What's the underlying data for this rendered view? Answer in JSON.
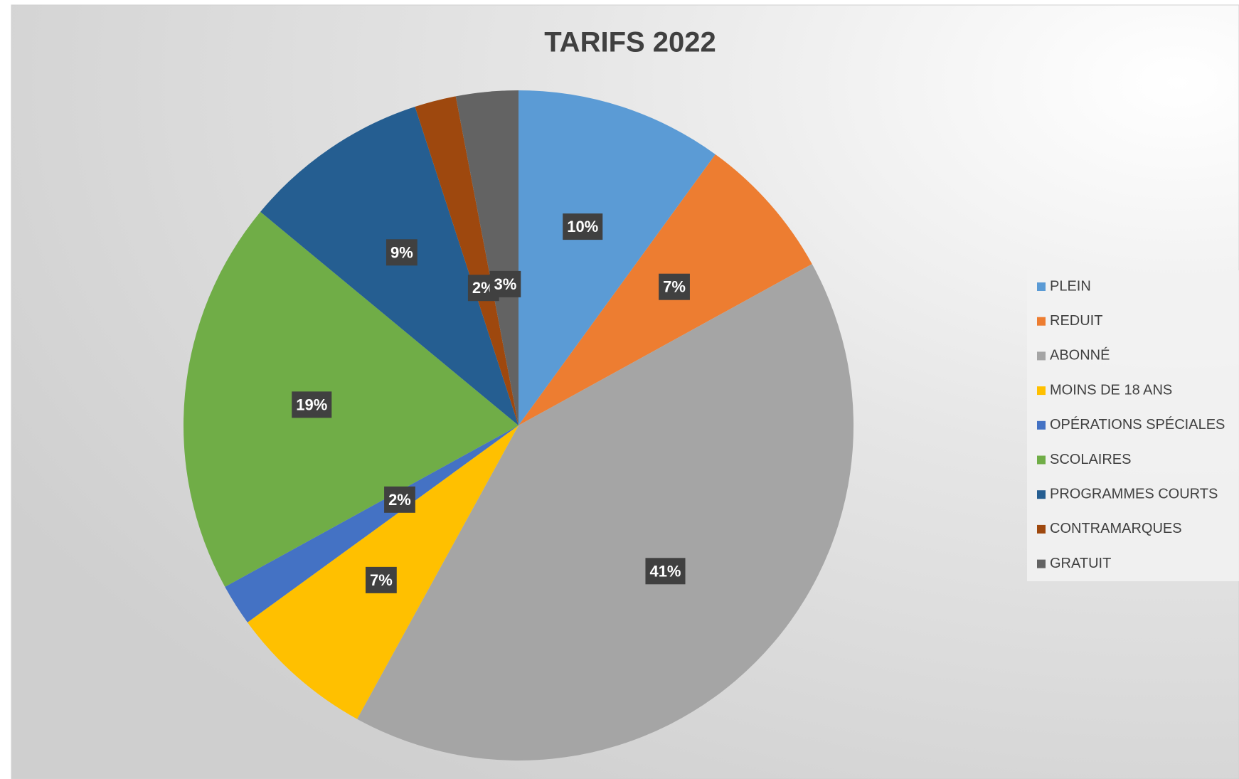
{
  "chart_data": {
    "type": "pie",
    "title": "TARIFS 2022",
    "categories": [
      "PLEIN",
      "REDUIT",
      "ABONNÉ",
      "MOINS DE 18 ANS",
      "OPÉRATIONS SPÉCIALES",
      "SCOLAIRES",
      "PROGRAMMES COURTS",
      "CONTRAMARQUES",
      "GRATUIT"
    ],
    "values": [
      10,
      7,
      41,
      7,
      2,
      19,
      9,
      2,
      3
    ],
    "value_labels": [
      "10%",
      "7%",
      "41%",
      "7%",
      "2%",
      "19%",
      "9%",
      "2%",
      "3%"
    ],
    "colors": [
      "#5b9bd5",
      "#ed7d31",
      "#a5a5a5",
      "#ffc000",
      "#4472c4",
      "#70ad47",
      "#255e91",
      "#9e480e",
      "#636363"
    ],
    "legend": "right"
  }
}
